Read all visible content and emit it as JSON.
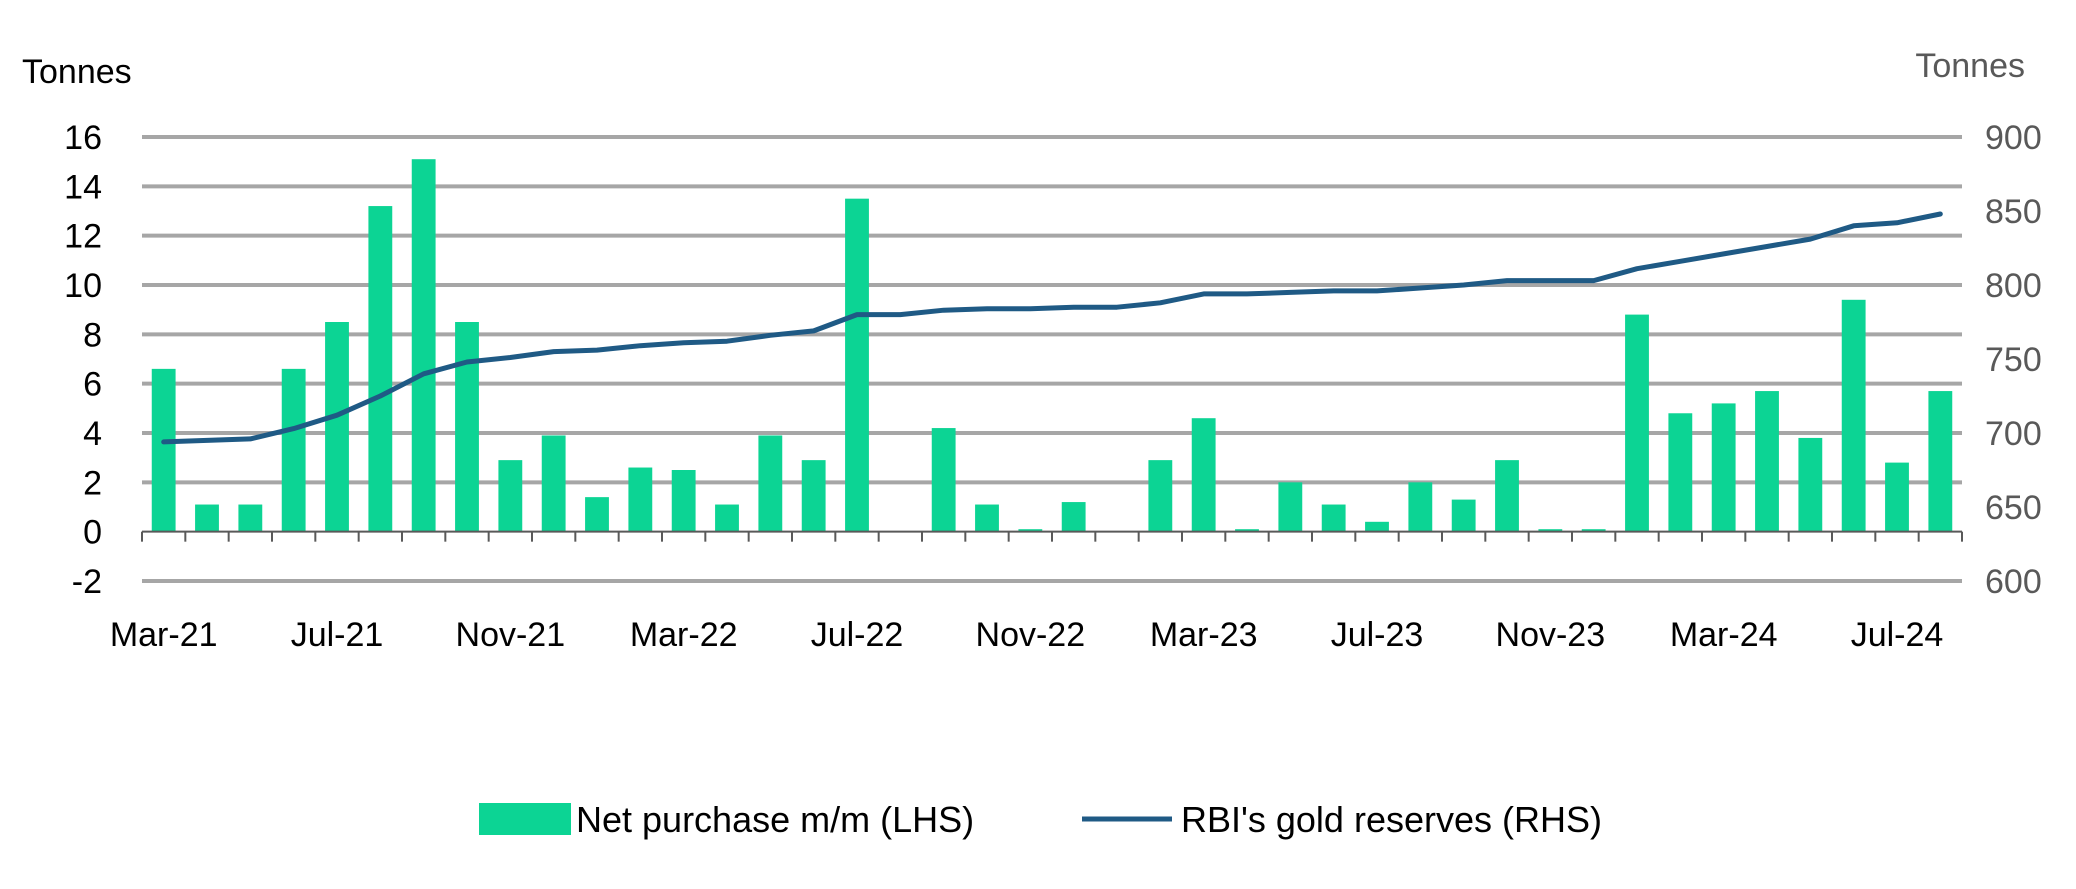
{
  "chart_data": {
    "type": "bar+line",
    "left_axis": {
      "unit": "Tonnes",
      "ylim": [
        -2,
        16
      ],
      "ticks": [
        -2,
        0,
        2,
        4,
        6,
        8,
        10,
        12,
        14,
        16
      ]
    },
    "right_axis": {
      "unit": "Tonnes",
      "ylim": [
        600,
        900
      ],
      "ticks": [
        600,
        650,
        700,
        750,
        800,
        850,
        900
      ]
    },
    "x": [
      "Mar-21",
      "Apr-21",
      "May-21",
      "Jun-21",
      "Jul-21",
      "Aug-21",
      "Sep-21",
      "Oct-21",
      "Nov-21",
      "Dec-21",
      "Jan-22",
      "Feb-22",
      "Mar-22",
      "Apr-22",
      "May-22",
      "Jun-22",
      "Jul-22",
      "Aug-22",
      "Sep-22",
      "Oct-22",
      "Nov-22",
      "Dec-22",
      "Jan-23",
      "Feb-23",
      "Mar-23",
      "Apr-23",
      "May-23",
      "Jun-23",
      "Jul-23",
      "Aug-23",
      "Sep-23",
      "Oct-23",
      "Nov-23",
      "Dec-23",
      "Jan-24",
      "Feb-24",
      "Mar-24",
      "Apr-24",
      "May-24",
      "Jun-24",
      "Jul-24",
      "Aug-24"
    ],
    "x_tick_labels": [
      "Mar-21",
      "Jul-21",
      "Nov-21",
      "Mar-22",
      "Jul-22",
      "Nov-22",
      "Mar-23",
      "Jul-23",
      "Nov-23",
      "Mar-24",
      "Jul-24"
    ],
    "series": [
      {
        "name": "Net purchase m/m (LHS)",
        "type": "bar",
        "axis": "left",
        "color": "#0cd494",
        "values": [
          6.6,
          1.1,
          1.1,
          6.6,
          8.5,
          13.2,
          15.1,
          8.5,
          2.9,
          3.9,
          1.4,
          2.6,
          2.5,
          1.1,
          3.9,
          2.9,
          13.5,
          0,
          4.2,
          1.1,
          0.1,
          1.2,
          0,
          2.9,
          4.6,
          0.1,
          2.0,
          1.1,
          0.4,
          2.0,
          1.3,
          2.9,
          0.1,
          0.1,
          8.8,
          4.8,
          5.2,
          5.7,
          3.8,
          9.4,
          2.8,
          5.7
        ]
      },
      {
        "name": "RBI's gold reserves (RHS)",
        "type": "line",
        "axis": "right",
        "color": "#1f5a85",
        "values": [
          694,
          695,
          696,
          703,
          712,
          725,
          740,
          748,
          751,
          755,
          756,
          759,
          761,
          762,
          766,
          769,
          780,
          780,
          783,
          784,
          784,
          785,
          785,
          788,
          794,
          794,
          795,
          796,
          796,
          798,
          800,
          803,
          803,
          803,
          811,
          816,
          821,
          826,
          831,
          840,
          842,
          848
        ]
      }
    ],
    "grid": "horizontal"
  }
}
